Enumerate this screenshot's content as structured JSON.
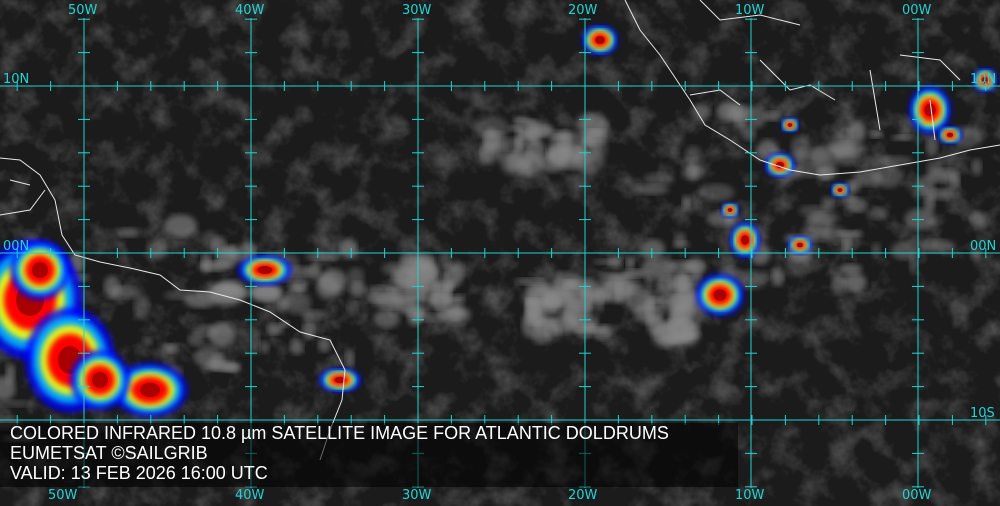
{
  "caption": {
    "title": "COLORED INFRARED 10.8 µm SATELLITE IMAGE FOR ATLANTIC DOLDRUMS",
    "credit": "EUMETSAT ©SAILGRIB",
    "valid": "VALID:  13 FEB 2026 16:00 UTC"
  },
  "grid": {
    "longitudes": [
      "50W",
      "40W",
      "30W",
      "20W",
      "10W",
      "00W"
    ],
    "latitudes": [
      "10N",
      "00N",
      "10S"
    ],
    "color": "#22d3d3"
  },
  "palette": {
    "cold": "#ff0000",
    "mid": "#ffff00",
    "cool": "#00c0ff",
    "deep": "#0000ff"
  }
}
